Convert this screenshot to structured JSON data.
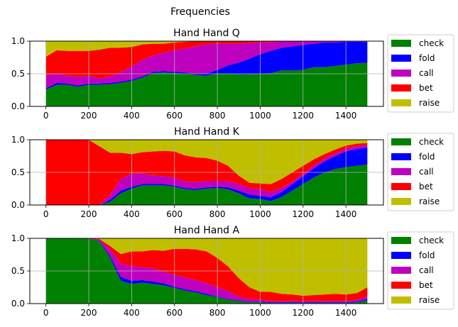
{
  "figure_title": "Frequencies",
  "colors": {
    "check": "#008000",
    "fold": "#0000ff",
    "call": "#bf00bf",
    "bet": "#ff0000",
    "raise": "#bfbf00"
  },
  "chart_data": [
    {
      "type": "area",
      "title": "Hand Hand Q",
      "xlim": [
        -75,
        1575
      ],
      "ylim": [
        0,
        1
      ],
      "xticks": [
        0,
        200,
        400,
        600,
        800,
        1000,
        1200,
        1400
      ],
      "yticks": [
        "0.0",
        "0.5",
        "1.0"
      ],
      "grid": true,
      "legend_placement": "outside-right",
      "x": [
        0,
        50,
        100,
        150,
        200,
        250,
        300,
        350,
        400,
        450,
        500,
        550,
        600,
        650,
        700,
        750,
        800,
        850,
        900,
        950,
        1000,
        1050,
        1100,
        1150,
        1200,
        1250,
        1300,
        1350,
        1400,
        1450,
        1500
      ],
      "series": [
        {
          "name": "check",
          "values": [
            0.26,
            0.33,
            0.33,
            0.3,
            0.33,
            0.33,
            0.34,
            0.36,
            0.39,
            0.44,
            0.51,
            0.52,
            0.51,
            0.5,
            0.48,
            0.47,
            0.5,
            0.5,
            0.49,
            0.49,
            0.5,
            0.51,
            0.55,
            0.55,
            0.56,
            0.6,
            0.6,
            0.62,
            0.64,
            0.66,
            0.67
          ]
        },
        {
          "name": "fold",
          "values": [
            0.02,
            0.03,
            0.02,
            0.02,
            0.02,
            0.02,
            0.02,
            0.02,
            0.02,
            0.02,
            0.02,
            0.02,
            0.02,
            0.02,
            0.02,
            0.03,
            0.06,
            0.13,
            0.18,
            0.24,
            0.3,
            0.34,
            0.35,
            0.37,
            0.38,
            0.36,
            0.38,
            0.36,
            0.35,
            0.33,
            0.32
          ]
        },
        {
          "name": "call",
          "values": [
            0.2,
            0.14,
            0.12,
            0.13,
            0.12,
            0.08,
            0.1,
            0.14,
            0.2,
            0.25,
            0.25,
            0.28,
            0.33,
            0.37,
            0.42,
            0.45,
            0.4,
            0.33,
            0.29,
            0.24,
            0.18,
            0.13,
            0.1,
            0.08,
            0.06,
            0.04,
            0.02,
            0.02,
            0.01,
            0.01,
            0.01
          ]
        },
        {
          "name": "bet",
          "values": [
            0.28,
            0.36,
            0.38,
            0.4,
            0.38,
            0.44,
            0.44,
            0.38,
            0.3,
            0.24,
            0.18,
            0.14,
            0.12,
            0.1,
            0.08,
            0.05,
            0.04,
            0.04,
            0.04,
            0.03,
            0.02,
            0.02,
            0.0,
            0.0,
            0.0,
            0.0,
            0.0,
            0.0,
            0.0,
            0.0,
            0.0
          ]
        },
        {
          "name": "raise",
          "values": [
            0.24,
            0.14,
            0.15,
            0.15,
            0.15,
            0.13,
            0.1,
            0.1,
            0.09,
            0.05,
            0.04,
            0.04,
            0.02,
            0.01,
            0.0,
            0.0,
            0.0,
            0.0,
            0.0,
            0.0,
            0.0,
            0.0,
            0.0,
            0.0,
            0.0,
            0.0,
            0.0,
            0.0,
            0.0,
            0.0,
            0.0
          ]
        }
      ]
    },
    {
      "type": "area",
      "title": "Hand Hand K",
      "xlim": [
        -75,
        1575
      ],
      "ylim": [
        0,
        1
      ],
      "xticks": [
        0,
        200,
        400,
        600,
        800,
        1000,
        1200,
        1400
      ],
      "yticks": [
        "0.0",
        "0.5",
        "1.0"
      ],
      "grid": true,
      "legend_placement": "outside-right",
      "x": [
        0,
        50,
        100,
        150,
        200,
        250,
        300,
        350,
        400,
        450,
        500,
        550,
        600,
        650,
        700,
        750,
        800,
        850,
        900,
        950,
        1000,
        1050,
        1100,
        1150,
        1200,
        1250,
        1300,
        1350,
        1400,
        1450,
        1500
      ],
      "series": [
        {
          "name": "check",
          "values": [
            0.0,
            0.0,
            0.0,
            0.0,
            0.0,
            0.0,
            0.05,
            0.18,
            0.25,
            0.3,
            0.3,
            0.3,
            0.28,
            0.24,
            0.23,
            0.25,
            0.26,
            0.24,
            0.18,
            0.1,
            0.09,
            0.06,
            0.12,
            0.22,
            0.32,
            0.42,
            0.5,
            0.55,
            0.58,
            0.6,
            0.62
          ]
        },
        {
          "name": "fold",
          "values": [
            0.0,
            0.0,
            0.0,
            0.0,
            0.0,
            0.0,
            0.03,
            0.04,
            0.03,
            0.02,
            0.02,
            0.02,
            0.02,
            0.02,
            0.02,
            0.02,
            0.02,
            0.03,
            0.04,
            0.06,
            0.05,
            0.06,
            0.08,
            0.1,
            0.12,
            0.14,
            0.17,
            0.2,
            0.24,
            0.26,
            0.26
          ]
        },
        {
          "name": "call",
          "values": [
            0.0,
            0.0,
            0.0,
            0.0,
            0.0,
            0.0,
            0.08,
            0.18,
            0.2,
            0.16,
            0.13,
            0.12,
            0.12,
            0.1,
            0.1,
            0.1,
            0.09,
            0.1,
            0.1,
            0.1,
            0.1,
            0.08,
            0.06,
            0.04,
            0.04,
            0.04,
            0.04,
            0.04,
            0.04,
            0.04,
            0.04
          ]
        },
        {
          "name": "bet",
          "values": [
            1.0,
            1.0,
            1.0,
            1.0,
            1.0,
            0.9,
            0.64,
            0.4,
            0.3,
            0.33,
            0.37,
            0.39,
            0.4,
            0.4,
            0.38,
            0.35,
            0.31,
            0.23,
            0.13,
            0.08,
            0.09,
            0.12,
            0.14,
            0.14,
            0.12,
            0.1,
            0.07,
            0.06,
            0.05,
            0.04,
            0.03
          ]
        },
        {
          "name": "raise",
          "values": [
            0.0,
            0.0,
            0.0,
            0.0,
            0.0,
            0.1,
            0.2,
            0.2,
            0.22,
            0.19,
            0.18,
            0.17,
            0.18,
            0.24,
            0.27,
            0.28,
            0.32,
            0.4,
            0.55,
            0.66,
            0.67,
            0.68,
            0.6,
            0.5,
            0.4,
            0.3,
            0.22,
            0.15,
            0.09,
            0.06,
            0.05
          ]
        }
      ]
    },
    {
      "type": "area",
      "title": "Hand Hand A",
      "xlim": [
        -75,
        1575
      ],
      "ylim": [
        0,
        1
      ],
      "xticks": [
        0,
        200,
        400,
        600,
        800,
        1000,
        1200,
        1400
      ],
      "yticks": [
        "0.0",
        "0.5",
        "1.0"
      ],
      "grid": true,
      "legend_placement": "outside-right",
      "x": [
        0,
        50,
        100,
        150,
        200,
        250,
        300,
        350,
        400,
        450,
        500,
        550,
        600,
        650,
        700,
        750,
        800,
        850,
        900,
        950,
        1000,
        1050,
        1100,
        1150,
        1200,
        1250,
        1300,
        1350,
        1400,
        1450,
        1500
      ],
      "series": [
        {
          "name": "check",
          "values": [
            1.0,
            1.0,
            1.0,
            1.0,
            1.0,
            0.95,
            0.7,
            0.35,
            0.3,
            0.32,
            0.3,
            0.28,
            0.24,
            0.2,
            0.17,
            0.13,
            0.1,
            0.06,
            0.04,
            0.02,
            0.02,
            0.01,
            0.01,
            0.01,
            0.01,
            0.01,
            0.01,
            0.01,
            0.01,
            0.02,
            0.05
          ]
        },
        {
          "name": "fold",
          "values": [
            0.0,
            0.0,
            0.0,
            0.0,
            0.0,
            0.01,
            0.03,
            0.06,
            0.05,
            0.04,
            0.04,
            0.03,
            0.02,
            0.02,
            0.02,
            0.02,
            0.01,
            0.01,
            0.01,
            0.01,
            0.01,
            0.01,
            0.01,
            0.01,
            0.01,
            0.01,
            0.01,
            0.01,
            0.01,
            0.01,
            0.02
          ]
        },
        {
          "name": "call",
          "values": [
            0.0,
            0.0,
            0.0,
            0.0,
            0.0,
            0.02,
            0.1,
            0.2,
            0.22,
            0.2,
            0.2,
            0.18,
            0.18,
            0.18,
            0.17,
            0.16,
            0.14,
            0.12,
            0.06,
            0.04,
            0.03,
            0.02,
            0.02,
            0.02,
            0.02,
            0.02,
            0.02,
            0.02,
            0.02,
            0.03,
            0.04
          ]
        },
        {
          "name": "bet",
          "values": [
            0.0,
            0.0,
            0.0,
            0.0,
            0.0,
            0.01,
            0.05,
            0.15,
            0.23,
            0.24,
            0.28,
            0.32,
            0.4,
            0.44,
            0.47,
            0.49,
            0.45,
            0.38,
            0.28,
            0.18,
            0.12,
            0.14,
            0.11,
            0.1,
            0.08,
            0.09,
            0.1,
            0.11,
            0.1,
            0.1,
            0.14
          ]
        },
        {
          "name": "raise",
          "values": [
            0.0,
            0.0,
            0.0,
            0.0,
            0.0,
            0.01,
            0.12,
            0.24,
            0.2,
            0.2,
            0.18,
            0.19,
            0.16,
            0.16,
            0.17,
            0.2,
            0.3,
            0.43,
            0.61,
            0.75,
            0.82,
            0.82,
            0.85,
            0.86,
            0.88,
            0.87,
            0.86,
            0.85,
            0.86,
            0.84,
            0.75
          ]
        }
      ]
    }
  ]
}
